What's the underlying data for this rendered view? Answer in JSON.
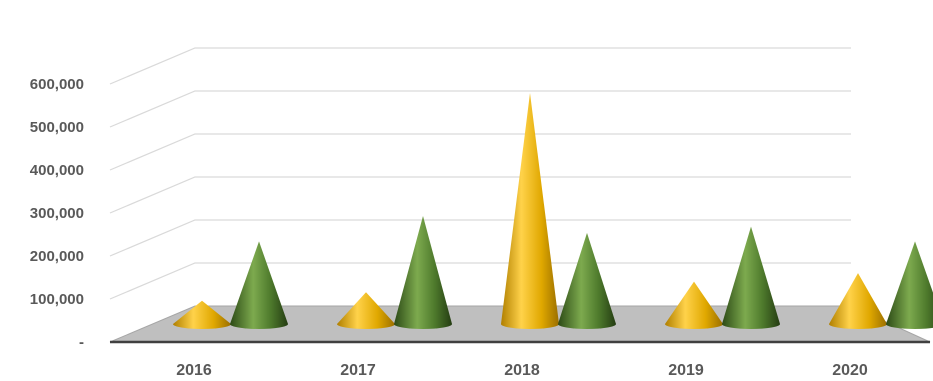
{
  "chart_data": {
    "type": "bar",
    "subtype": "3d-cone",
    "title": "",
    "xlabel": "",
    "ylabel": "",
    "categories": [
      "2016",
      "2017",
      "2018",
      "2019",
      "2020"
    ],
    "series": [
      {
        "color": "#D9A400",
        "values": [
          55000,
          75000,
          545000,
          100000,
          120000
        ]
      },
      {
        "color": "#4E7A2C",
        "values": [
          195000,
          255000,
          215000,
          230000,
          195000
        ]
      }
    ],
    "ylim": [
      0,
      600000
    ],
    "yticks": [
      0,
      100000,
      200000,
      300000,
      400000,
      500000,
      600000
    ],
    "ytick_labels": [
      "-",
      "100,000",
      "200,000",
      "300,000",
      "400,000",
      "500,000",
      "600,000"
    ],
    "grid": true,
    "legend": "none",
    "floor_color": "#BFBFBF"
  }
}
